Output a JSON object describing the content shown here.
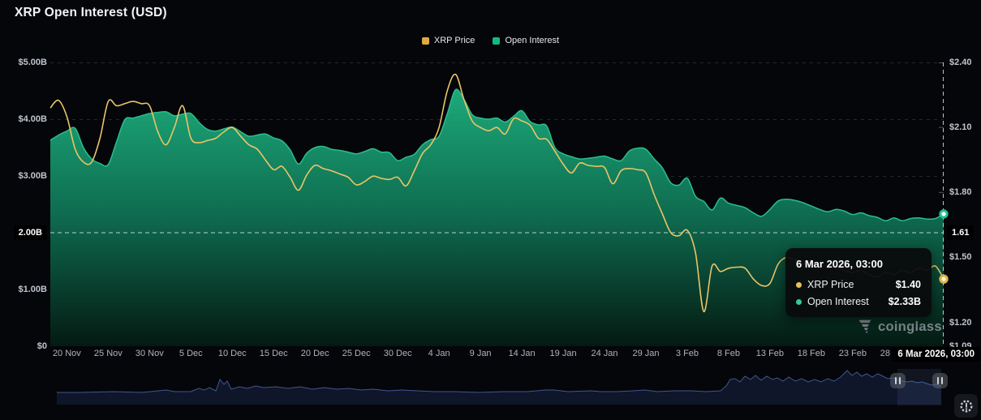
{
  "header": {
    "title": "XRP Open Interest (USD)"
  },
  "legend": {
    "items": [
      {
        "label": "XRP Price",
        "color": "#E2A93F"
      },
      {
        "label": "Open Interest",
        "color": "#13BA7D"
      }
    ]
  },
  "tooltip": {
    "date": "6 Mar 2026, 03:00",
    "rows": [
      {
        "label": "XRP Price",
        "value": "$1.40",
        "color": "#E8C05A"
      },
      {
        "label": "Open Interest",
        "value": "$2.33B",
        "color": "#30CE96"
      }
    ]
  },
  "watermark": {
    "text": "coinglass"
  },
  "chart_data": {
    "type": "line",
    "title": "XRP Open Interest (USD)",
    "x_domain_days": [
      0,
      108
    ],
    "x_axis": {
      "tick_days": [
        2,
        7,
        12,
        17,
        22,
        27,
        32,
        37,
        42,
        47,
        52,
        57,
        62,
        67,
        72,
        77,
        82,
        87,
        92,
        97,
        102
      ],
      "tick_labels": [
        "20 Nov",
        "25 Nov",
        "30 Nov",
        "5 Dec",
        "10 Dec",
        "15 Dec",
        "20 Dec",
        "25 Dec",
        "30 Dec",
        "4 Jan",
        "9 Jan",
        "14 Jan",
        "19 Jan",
        "24 Jan",
        "29 Jan",
        "3 Feb",
        "8 Feb",
        "13 Feb",
        "18 Feb",
        "23 Feb",
        "28 Feb"
      ],
      "crosshair_label": "6 Mar 2026, 03:00"
    },
    "left_axis": {
      "lim": [
        0,
        5
      ],
      "tick_values": [
        5,
        4,
        3,
        1,
        0
      ],
      "tick_labels": [
        "$5.00B",
        "$4.00B",
        "$3.00B",
        "$1.00B",
        "$0"
      ],
      "crosshair_value": 2.0,
      "crosshair_label": "2.00B"
    },
    "right_axis": {
      "lim": [
        1.09,
        2.4
      ],
      "tick_values": [
        2.4,
        2.1,
        1.8,
        1.5,
        1.2,
        1.09
      ],
      "tick_labels": [
        "$2.40",
        "$2.10",
        "$1.80",
        "$1.50",
        "$1.20",
        "$1.09"
      ],
      "crosshair_value": 1.61,
      "crosshair_label": "1.61"
    },
    "crosshair_day": 108,
    "last_points": {
      "price": 1.4,
      "open_interest_b": 2.33
    },
    "series": [
      {
        "name": "XRP Price",
        "type": "line",
        "axis": "right",
        "color": "#EBC466",
        "values": [
          2.19,
          2.225,
          2.15,
          2.0,
          1.94,
          1.94,
          2.05,
          2.22,
          2.2,
          2.21,
          2.22,
          2.21,
          2.2,
          2.08,
          2.02,
          2.1,
          2.2,
          2.05,
          2.03,
          2.04,
          2.05,
          2.08,
          2.1,
          2.06,
          2.02,
          2.0,
          1.95,
          1.905,
          1.92,
          1.87,
          1.81,
          1.88,
          1.925,
          1.91,
          1.9,
          1.885,
          1.87,
          1.835,
          1.85,
          1.875,
          1.865,
          1.86,
          1.87,
          1.83,
          1.9,
          1.98,
          2.02,
          2.1,
          2.27,
          2.345,
          2.23,
          2.13,
          2.1,
          2.085,
          2.1,
          2.07,
          2.14,
          2.13,
          2.11,
          2.05,
          2.045,
          1.99,
          1.93,
          1.89,
          1.935,
          1.925,
          1.92,
          1.915,
          1.84,
          1.9,
          1.91,
          1.905,
          1.89,
          1.79,
          1.7,
          1.615,
          1.6,
          1.625,
          1.52,
          1.25,
          1.46,
          1.435,
          1.45,
          1.455,
          1.45,
          1.4,
          1.37,
          1.38,
          1.47,
          1.5,
          1.49,
          1.47,
          1.48,
          1.46,
          1.47,
          1.45,
          1.44,
          1.43,
          1.44,
          1.42,
          1.41,
          1.43,
          1.42,
          1.44,
          1.43,
          1.45,
          1.44,
          1.46,
          1.4
        ]
      },
      {
        "name": "Open Interest",
        "type": "area",
        "axis": "left",
        "color": "#1CA878",
        "line_color": "#2BBE8A",
        "values": [
          3.63,
          3.72,
          3.79,
          3.84,
          3.5,
          3.3,
          3.22,
          3.2,
          3.6,
          3.99,
          4.02,
          4.06,
          4.1,
          4.12,
          4.13,
          4.06,
          4.09,
          4.1,
          3.94,
          3.82,
          3.79,
          3.83,
          3.86,
          3.78,
          3.7,
          3.72,
          3.74,
          3.67,
          3.62,
          3.46,
          3.21,
          3.4,
          3.5,
          3.52,
          3.47,
          3.45,
          3.42,
          3.39,
          3.43,
          3.48,
          3.42,
          3.41,
          3.27,
          3.33,
          3.38,
          3.55,
          3.64,
          3.7,
          4.1,
          4.52,
          4.35,
          4.08,
          4.02,
          4.0,
          4.02,
          3.95,
          4.05,
          4.15,
          3.96,
          3.9,
          3.88,
          3.5,
          3.39,
          3.34,
          3.3,
          3.31,
          3.33,
          3.35,
          3.3,
          3.27,
          3.44,
          3.49,
          3.47,
          3.3,
          3.14,
          2.88,
          2.84,
          2.96,
          2.64,
          2.55,
          2.4,
          2.61,
          2.52,
          2.48,
          2.44,
          2.35,
          2.29,
          2.41,
          2.56,
          2.59,
          2.57,
          2.53,
          2.47,
          2.41,
          2.37,
          2.41,
          2.38,
          2.32,
          2.35,
          2.3,
          2.27,
          2.21,
          2.26,
          2.21,
          2.25,
          2.26,
          2.24,
          2.25,
          2.33
        ]
      }
    ],
    "grid_color": "#25282d",
    "crosshair_color": "#dfe4e9",
    "navigator": {
      "line_color": "#41568F",
      "fill_color": "rgba(17,24,44,0.9)",
      "selection_x": [
        1106,
        1160
      ],
      "handles_x": [
        1106,
        1158
      ],
      "points": [
        [
          70,
          484
        ],
        [
          100,
          484
        ],
        [
          140,
          483
        ],
        [
          175,
          484
        ],
        [
          205,
          481
        ],
        [
          215,
          483
        ],
        [
          235,
          483
        ],
        [
          245,
          479
        ],
        [
          252,
          481
        ],
        [
          258,
          478
        ],
        [
          266,
          482
        ],
        [
          271,
          468
        ],
        [
          276,
          474
        ],
        [
          280,
          470
        ],
        [
          285,
          480
        ],
        [
          295,
          477
        ],
        [
          305,
          479
        ],
        [
          315,
          476
        ],
        [
          325,
          478
        ],
        [
          340,
          477
        ],
        [
          355,
          479
        ],
        [
          370,
          477
        ],
        [
          385,
          480
        ],
        [
          400,
          478
        ],
        [
          415,
          480
        ],
        [
          430,
          479
        ],
        [
          445,
          481
        ],
        [
          460,
          480
        ],
        [
          478,
          482
        ],
        [
          495,
          481
        ],
        [
          515,
          482
        ],
        [
          535,
          483
        ],
        [
          560,
          483
        ],
        [
          590,
          484
        ],
        [
          620,
          483
        ],
        [
          650,
          483
        ],
        [
          672,
          481
        ],
        [
          683,
          481
        ],
        [
          700,
          483
        ],
        [
          728,
          482
        ],
        [
          740,
          483
        ],
        [
          760,
          483
        ],
        [
          780,
          482
        ],
        [
          795,
          481
        ],
        [
          810,
          483
        ],
        [
          830,
          482
        ],
        [
          853,
          482
        ],
        [
          870,
          483
        ],
        [
          888,
          482
        ],
        [
          895,
          476
        ],
        [
          900,
          468
        ],
        [
          906,
          467
        ],
        [
          912,
          471
        ],
        [
          918,
          464
        ],
        [
          925,
          468
        ],
        [
          931,
          463
        ],
        [
          938,
          469
        ],
        [
          945,
          464
        ],
        [
          952,
          468
        ],
        [
          958,
          466
        ],
        [
          965,
          470
        ],
        [
          972,
          465
        ],
        [
          980,
          470
        ],
        [
          988,
          467
        ],
        [
          996,
          471
        ],
        [
          1004,
          468
        ],
        [
          1012,
          471
        ],
        [
          1020,
          467
        ],
        [
          1028,
          470
        ],
        [
          1036,
          465
        ],
        [
          1044,
          457
        ],
        [
          1050,
          463
        ],
        [
          1056,
          459
        ],
        [
          1062,
          464
        ],
        [
          1068,
          461
        ],
        [
          1075,
          465
        ],
        [
          1082,
          461
        ],
        [
          1088,
          464
        ],
        [
          1094,
          467
        ],
        [
          1100,
          466
        ],
        [
          1106,
          468
        ],
        [
          1112,
          470
        ],
        [
          1118,
          471
        ],
        [
          1124,
          470
        ],
        [
          1130,
          472
        ],
        [
          1136,
          471
        ],
        [
          1142,
          473
        ],
        [
          1148,
          475
        ],
        [
          1154,
          474
        ],
        [
          1160,
          476
        ]
      ]
    }
  }
}
